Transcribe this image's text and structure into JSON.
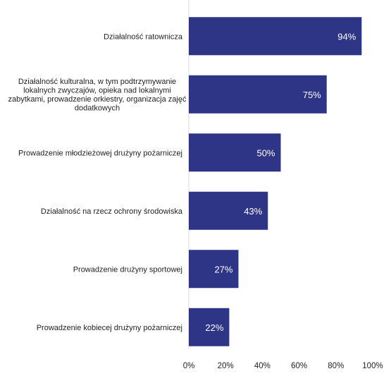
{
  "chart_data": {
    "type": "bar",
    "orientation": "horizontal",
    "categories": [
      [
        "Działalność ratownicza"
      ],
      [
        "Działalność kulturalna, w tym podtrzymywanie",
        "lokalnych zwyczajów, opieka nad lokalnymi",
        "zabytkami, prowadzenie orkiestry, organizacja zajęć",
        "dodatkowych"
      ],
      [
        "Prowadzenie młodzieżowej drużyny pożarniczej"
      ],
      [
        "Działalność na rzecz ochrony środowiska"
      ],
      [
        "Prowadzenie drużyny sportowej"
      ],
      [
        "Prowadzenie kobiecej drużyny pożarniczej"
      ]
    ],
    "values": [
      94,
      75,
      50,
      43,
      27,
      22
    ],
    "value_labels": [
      "94%",
      "75%",
      "50%",
      "43%",
      "27%",
      "22%"
    ],
    "xlim": [
      0,
      100
    ],
    "xticks": [
      0,
      20,
      40,
      60,
      80,
      100
    ],
    "xtick_labels": [
      "0%",
      "20%",
      "40%",
      "60%",
      "80%",
      "100%"
    ],
    "bar_color": "#2e3586",
    "grid": false,
    "legend": "none"
  }
}
